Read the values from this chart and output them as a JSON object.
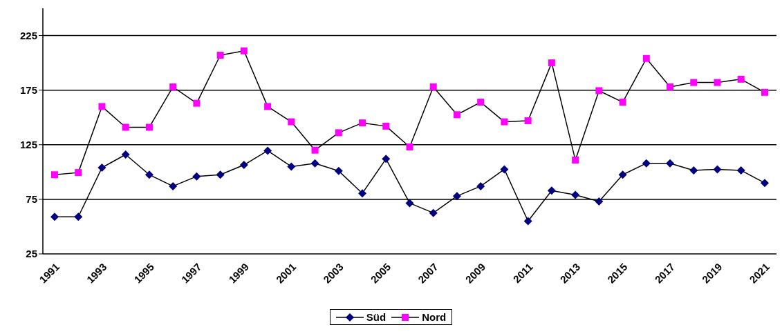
{
  "chart_data": {
    "type": "line",
    "categories": [
      "1991",
      null,
      "1993",
      null,
      "1995",
      null,
      "1997",
      null,
      "1999",
      null,
      "2001",
      null,
      "2003",
      null,
      "2005",
      null,
      "2007",
      null,
      "2009",
      null,
      "2011",
      null,
      "2013",
      null,
      "2015",
      null,
      "2017",
      null,
      "2019",
      null,
      "2021"
    ],
    "series": [
      {
        "name": "Süd",
        "color": "#000080",
        "marker": "diamond",
        "values": [
          59,
          59,
          104,
          116,
          97.5,
          87,
          96,
          97.5,
          106.5,
          119.5,
          105,
          108,
          101,
          80.5,
          112,
          71.5,
          62.5,
          78,
          87,
          102.5,
          55,
          83,
          79,
          73,
          97.5,
          108,
          108,
          101.5,
          102.5,
          101.5,
          90
        ]
      },
      {
        "name": "Nord",
        "color": "#ff00ff",
        "marker": "square",
        "values": [
          97.5,
          99.5,
          160,
          141,
          141,
          178,
          163,
          207,
          211,
          160,
          146,
          120,
          136,
          145,
          142,
          123,
          178,
          152.5,
          164,
          146,
          147,
          200,
          111,
          174.5,
          164,
          204,
          178,
          182,
          182,
          185,
          173
        ]
      }
    ],
    "ylim": [
      25,
      250
    ],
    "yticks": [
      25,
      75,
      125,
      175,
      225
    ],
    "grid": "y",
    "legend": "bottom",
    "line_style": "solid"
  }
}
